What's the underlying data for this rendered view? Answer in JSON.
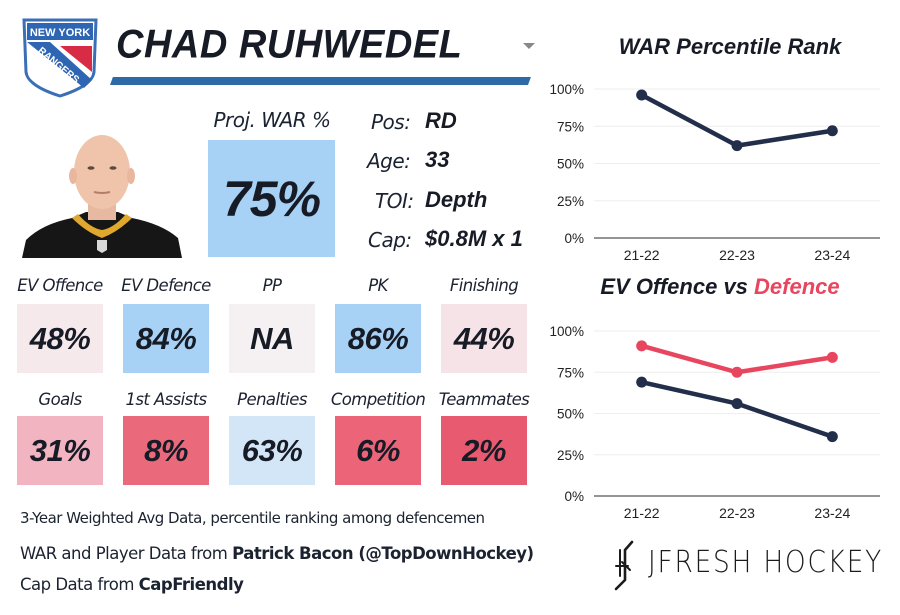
{
  "header": {
    "team_logo_text": [
      "NEW YORK",
      "RANGERS"
    ],
    "player_name": "CHAD RUHWEDEL"
  },
  "projection": {
    "label": "Proj. WAR %",
    "value": "75%",
    "percentile": 75,
    "tile_color": "#a7d1f5"
  },
  "bio": [
    {
      "label": "Pos:",
      "value": "RD"
    },
    {
      "label": "Age:",
      "value": "33"
    },
    {
      "label": "TOI:",
      "value": "Depth"
    },
    {
      "label": "Cap:",
      "value": "$0.8M x 1"
    }
  ],
  "stats_row1": [
    {
      "label": "EV Offence",
      "value": "48%",
      "color": "#f6e9ec"
    },
    {
      "label": "EV Defence",
      "value": "84%",
      "color": "#a7d1f5"
    },
    {
      "label": "PP",
      "value": "NA",
      "color": "#f5f1f3"
    },
    {
      "label": "PK",
      "value": "86%",
      "color": "#a7d1f5"
    },
    {
      "label": "Finishing",
      "value": "44%",
      "color": "#f6e3e8"
    }
  ],
  "stats_row2": [
    {
      "label": "Goals",
      "value": "31%",
      "color": "#f2b4c1"
    },
    {
      "label": "1st Assists",
      "value": "8%",
      "color": "#ea6a7c"
    },
    {
      "label": "Penalties",
      "value": "63%",
      "color": "#d3e6f7"
    },
    {
      "label": "Competition",
      "value": "6%",
      "color": "#eb6478"
    },
    {
      "label": "Teammates",
      "value": "2%",
      "color": "#e85a6f"
    }
  ],
  "footer": {
    "note": "3-Year Weighted Avg Data, percentile ranking among defencemen",
    "war_prefix": "WAR and Player Data from ",
    "war_source": "Patrick Bacon (@TopDownHockey)",
    "cap_prefix": "Cap Data from ",
    "cap_source": "CapFriendly"
  },
  "brand": {
    "name": "JFRESH HOCKEY",
    "logo_text": "JF"
  },
  "colors": {
    "navy": "#232f4a",
    "red": "#e8465f",
    "title_bar": "#2f6aa8"
  },
  "chart_data": [
    {
      "type": "line",
      "title": "WAR Percentile Rank",
      "categories": [
        "21-22",
        "22-23",
        "23-24"
      ],
      "yticks": [
        "0%",
        "25%",
        "50%",
        "75%",
        "100%"
      ],
      "ylim": [
        0,
        100
      ],
      "grid": true,
      "series": [
        {
          "name": "WAR",
          "color": "#232f4a",
          "values": [
            96,
            62,
            72
          ]
        }
      ],
      "xlabel": "",
      "ylabel": ""
    },
    {
      "type": "line",
      "title_parts": [
        "EV Offence vs ",
        "Defence"
      ],
      "categories": [
        "21-22",
        "22-23",
        "23-24"
      ],
      "yticks": [
        "0%",
        "25%",
        "50%",
        "75%",
        "100%"
      ],
      "ylim": [
        0,
        100
      ],
      "grid": true,
      "series": [
        {
          "name": "EV Defence",
          "color": "#e8465f",
          "values": [
            91,
            75,
            84
          ]
        },
        {
          "name": "EV Offence",
          "color": "#232f4a",
          "values": [
            69,
            56,
            36
          ]
        }
      ],
      "xlabel": "",
      "ylabel": ""
    }
  ]
}
